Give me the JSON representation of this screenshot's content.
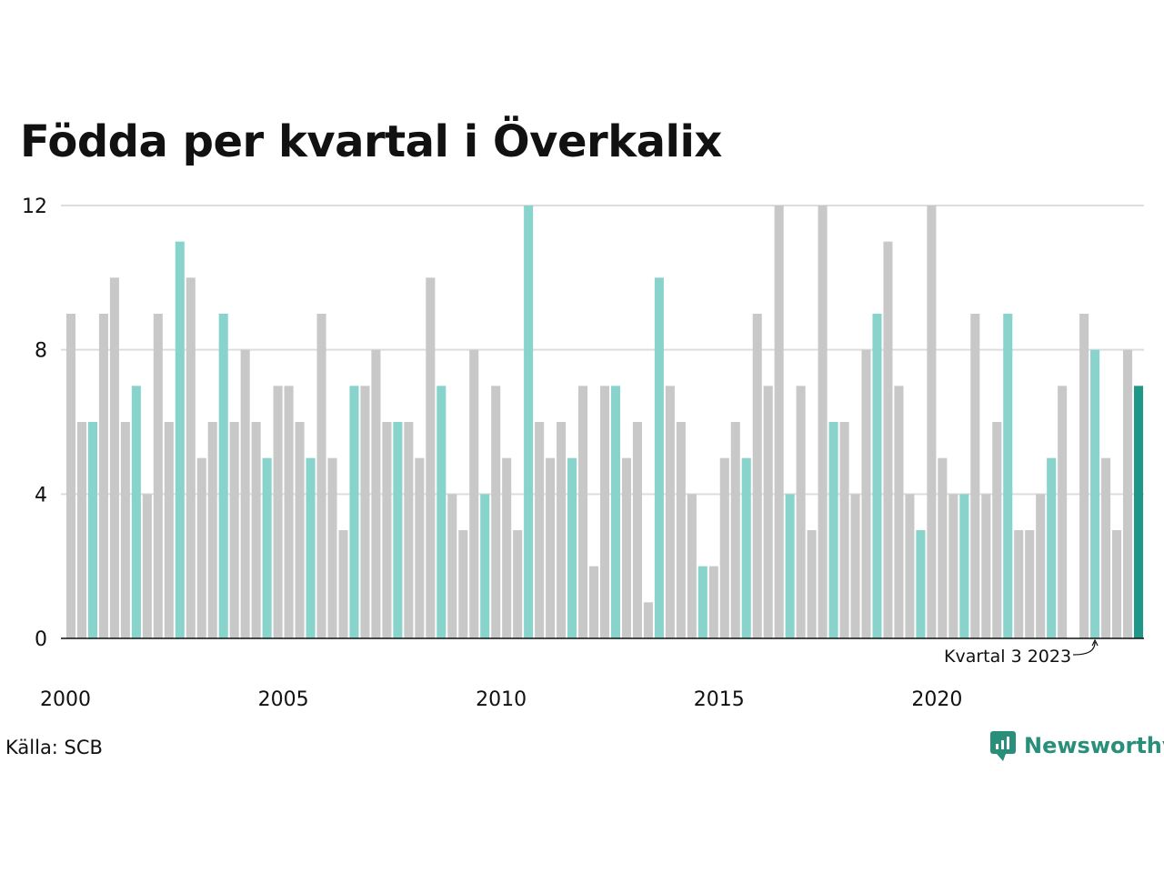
{
  "chart_data": {
    "type": "bar",
    "title": "Födda per kvartal i Överkalix",
    "xlabel": "",
    "ylabel": "",
    "ylim": [
      0,
      12
    ],
    "yticks": [
      0,
      4,
      8,
      12
    ],
    "xtick_labels": [
      "2000",
      "2005",
      "2010",
      "2015",
      "2020"
    ],
    "first_year": 2000,
    "grid": true,
    "values": [
      9,
      6,
      6,
      9,
      10,
      6,
      7,
      4,
      9,
      6,
      11,
      10,
      5,
      6,
      9,
      6,
      8,
      6,
      5,
      7,
      7,
      6,
      5,
      9,
      5,
      3,
      7,
      7,
      8,
      6,
      6,
      6,
      5,
      10,
      7,
      4,
      3,
      8,
      4,
      7,
      5,
      3,
      12,
      6,
      5,
      6,
      5,
      7,
      2,
      7,
      7,
      5,
      6,
      1,
      10,
      7,
      6,
      4,
      2,
      2,
      5,
      6,
      5,
      9,
      7,
      12,
      4,
      7,
      3,
      12,
      6,
      6,
      4,
      8,
      9,
      11,
      7,
      4,
      3,
      12,
      5,
      4,
      4,
      9,
      4,
      6,
      9,
      3,
      3,
      4,
      5,
      7,
      0,
      9,
      8,
      5,
      3,
      8,
      7
    ],
    "colors": {
      "other_quarters": "#c8c8c8",
      "quarter_3": "#88d4cc",
      "latest": "#1e9688",
      "grid": "#dddddd",
      "axis": "#111111"
    },
    "annotation": "Kvartal 3 2023",
    "annotation_index": 94
  },
  "source": "Källa: SCB",
  "brand": "Newsworthy"
}
